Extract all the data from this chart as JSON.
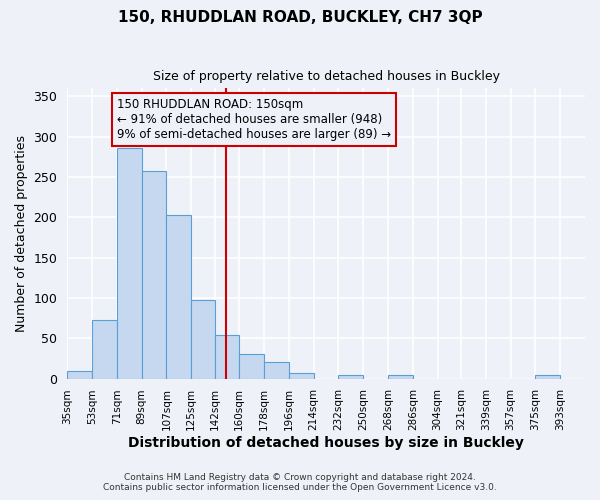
{
  "title": "150, RHUDDLAN ROAD, BUCKLEY, CH7 3QP",
  "subtitle": "Size of property relative to detached houses in Buckley",
  "xlabel": "Distribution of detached houses by size in Buckley",
  "ylabel": "Number of detached properties",
  "bin_labels": [
    "35sqm",
    "53sqm",
    "71sqm",
    "89sqm",
    "107sqm",
    "125sqm",
    "142sqm",
    "160sqm",
    "178sqm",
    "196sqm",
    "214sqm",
    "232sqm",
    "250sqm",
    "268sqm",
    "286sqm",
    "304sqm",
    "321sqm",
    "339sqm",
    "357sqm",
    "375sqm",
    "393sqm"
  ],
  "bin_edges": [
    35,
    53,
    71,
    89,
    107,
    125,
    142,
    160,
    178,
    196,
    214,
    232,
    250,
    268,
    286,
    304,
    321,
    339,
    357,
    375,
    393,
    411
  ],
  "bar_heights": [
    9,
    73,
    286,
    258,
    203,
    97,
    54,
    31,
    21,
    7,
    0,
    5,
    0,
    4,
    0,
    0,
    0,
    0,
    0,
    4,
    0
  ],
  "bar_color": "#c5d8f0",
  "bar_edge_color": "#5a9fd4",
  "vline_x": 150,
  "vline_color": "#cc0000",
  "annotation_title": "150 RHUDDLAN ROAD: 150sqm",
  "annotation_line1": "← 91% of detached houses are smaller (948)",
  "annotation_line2": "9% of semi-detached houses are larger (89) →",
  "annotation_box_color": "#cc0000",
  "ylim": [
    0,
    360
  ],
  "yticks": [
    0,
    50,
    100,
    150,
    200,
    250,
    300,
    350
  ],
  "footnote1": "Contains HM Land Registry data © Crown copyright and database right 2024.",
  "footnote2": "Contains public sector information licensed under the Open Government Licence v3.0.",
  "background_color": "#eef2f8",
  "grid_color": "#ffffff"
}
